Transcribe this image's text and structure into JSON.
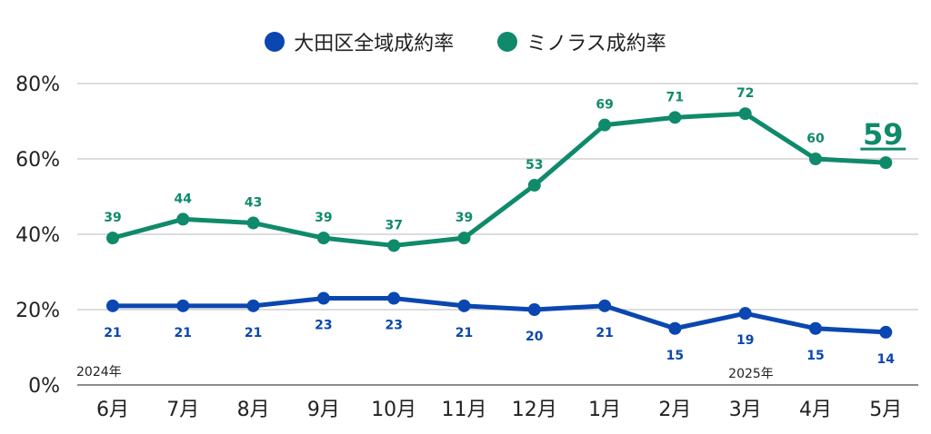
{
  "chart_data": {
    "type": "line",
    "categories": [
      "6月",
      "7月",
      "8月",
      "9月",
      "10月",
      "11月",
      "12月",
      "1月",
      "2月",
      "3月",
      "4月",
      "5月"
    ],
    "ylim": [
      0,
      80
    ],
    "yticks": [
      "0%",
      "20%",
      "40%",
      "60%",
      "80%"
    ],
    "grid": true,
    "legend_position": "top-center",
    "series": [
      {
        "name": "大田区全域成約率",
        "color": "#0a47b0",
        "values": [
          21,
          21,
          21,
          23,
          23,
          21,
          20,
          21,
          15,
          19,
          15,
          14
        ],
        "label_position": "below"
      },
      {
        "name": "ミノラス成約率",
        "color": "#0f8a6b",
        "values": [
          39,
          44,
          43,
          39,
          37,
          39,
          53,
          69,
          71,
          72,
          60,
          59
        ],
        "label_position": "above"
      }
    ],
    "year_labels": [
      "2024年",
      "2025年"
    ],
    "highlight_value": "59"
  }
}
